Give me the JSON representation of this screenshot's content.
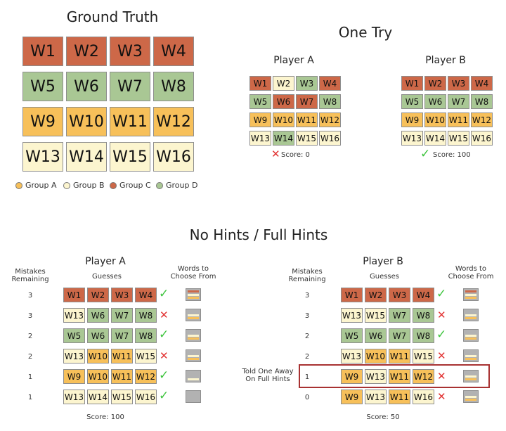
{
  "colors": {
    "A": "#f7c05a",
    "B": "#fcf5cf",
    "C": "#cd6848",
    "D": "#a9c794",
    "check": "#3ec43e",
    "cross": "#e23333",
    "highlight": "#a83232"
  },
  "ground_truth": {
    "title": "Ground Truth",
    "rows": [
      [
        {
          "w": "W1",
          "g": "C"
        },
        {
          "w": "W2",
          "g": "C"
        },
        {
          "w": "W3",
          "g": "C"
        },
        {
          "w": "W4",
          "g": "C"
        }
      ],
      [
        {
          "w": "W5",
          "g": "D"
        },
        {
          "w": "W6",
          "g": "D"
        },
        {
          "w": "W7",
          "g": "D"
        },
        {
          "w": "W8",
          "g": "D"
        }
      ],
      [
        {
          "w": "W9",
          "g": "A"
        },
        {
          "w": "W10",
          "g": "A"
        },
        {
          "w": "W11",
          "g": "A"
        },
        {
          "w": "W12",
          "g": "A"
        }
      ],
      [
        {
          "w": "W13",
          "g": "B"
        },
        {
          "w": "W14",
          "g": "B"
        },
        {
          "w": "W15",
          "g": "B"
        },
        {
          "w": "W16",
          "g": "B"
        }
      ]
    ]
  },
  "legend": [
    {
      "label": "Group A",
      "g": "A"
    },
    {
      "label": "Group B",
      "g": "B"
    },
    {
      "label": "Group C",
      "g": "C"
    },
    {
      "label": "Group D",
      "g": "D"
    }
  ],
  "one_try": {
    "title": "One Try",
    "players": [
      {
        "name": "Player A",
        "rows": [
          [
            {
              "w": "W1",
              "g": "C"
            },
            {
              "w": "W2",
              "g": "B"
            },
            {
              "w": "W3",
              "g": "D"
            },
            {
              "w": "W4",
              "g": "C"
            }
          ],
          [
            {
              "w": "W5",
              "g": "D"
            },
            {
              "w": "W6",
              "g": "C"
            },
            {
              "w": "W7",
              "g": "C"
            },
            {
              "w": "W8",
              "g": "D"
            }
          ],
          [
            {
              "w": "W9",
              "g": "A"
            },
            {
              "w": "W10",
              "g": "A"
            },
            {
              "w": "W11",
              "g": "A"
            },
            {
              "w": "W12",
              "g": "A"
            }
          ],
          [
            {
              "w": "W13",
              "g": "B"
            },
            {
              "w": "W14",
              "g": "D"
            },
            {
              "w": "W15",
              "g": "B"
            },
            {
              "w": "W16",
              "g": "B"
            }
          ]
        ],
        "result": "cross",
        "score": "Score: 0"
      },
      {
        "name": "Player B",
        "rows": [
          [
            {
              "w": "W1",
              "g": "C"
            },
            {
              "w": "W2",
              "g": "C"
            },
            {
              "w": "W3",
              "g": "C"
            },
            {
              "w": "W4",
              "g": "C"
            }
          ],
          [
            {
              "w": "W5",
              "g": "D"
            },
            {
              "w": "W6",
              "g": "D"
            },
            {
              "w": "W7",
              "g": "D"
            },
            {
              "w": "W8",
              "g": "D"
            }
          ],
          [
            {
              "w": "W9",
              "g": "A"
            },
            {
              "w": "W10",
              "g": "A"
            },
            {
              "w": "W11",
              "g": "A"
            },
            {
              "w": "W12",
              "g": "A"
            }
          ],
          [
            {
              "w": "W13",
              "g": "B"
            },
            {
              "w": "W14",
              "g": "B"
            },
            {
              "w": "W15",
              "g": "B"
            },
            {
              "w": "W16",
              "g": "B"
            }
          ]
        ],
        "result": "check",
        "score": "Score: 100"
      }
    ]
  },
  "hints": {
    "title": "No Hints / Full Hints",
    "mistakes_header": "Mistakes Remaining",
    "guesses_header": "Guesses",
    "words_header": "Words to Choose From",
    "players": [
      {
        "name": "Player A",
        "score": "Score: 100",
        "rows": [
          {
            "mistakes": "3",
            "words": [
              {
                "w": "W1",
                "g": "C"
              },
              {
                "w": "W2",
                "g": "C"
              },
              {
                "w": "W3",
                "g": "C"
              },
              {
                "w": "W4",
                "g": "C"
              }
            ],
            "result": "check",
            "bars": [
              "C",
              "B",
              "A"
            ]
          },
          {
            "mistakes": "3",
            "words": [
              {
                "w": "W13",
                "g": "B"
              },
              {
                "w": "W6",
                "g": "D"
              },
              {
                "w": "W7",
                "g": "D"
              },
              {
                "w": "W8",
                "g": "D"
              }
            ],
            "result": "cross",
            "bars": [
              "B",
              "A"
            ]
          },
          {
            "mistakes": "2",
            "words": [
              {
                "w": "W5",
                "g": "D"
              },
              {
                "w": "W6",
                "g": "D"
              },
              {
                "w": "W7",
                "g": "D"
              },
              {
                "w": "W8",
                "g": "D"
              }
            ],
            "result": "check",
            "bars": [
              "B",
              "A"
            ]
          },
          {
            "mistakes": "2",
            "words": [
              {
                "w": "W13",
                "g": "B"
              },
              {
                "w": "W10",
                "g": "A"
              },
              {
                "w": "W11",
                "g": "A"
              },
              {
                "w": "W15",
                "g": "B"
              }
            ],
            "result": "cross",
            "bars": [
              "B",
              "A"
            ]
          },
          {
            "mistakes": "1",
            "words": [
              {
                "w": "W9",
                "g": "A"
              },
              {
                "w": "W10",
                "g": "A"
              },
              {
                "w": "W11",
                "g": "A"
              },
              {
                "w": "W12",
                "g": "A"
              }
            ],
            "result": "check",
            "bars": [
              "B"
            ]
          },
          {
            "mistakes": "1",
            "words": [
              {
                "w": "W13",
                "g": "B"
              },
              {
                "w": "W14",
                "g": "B"
              },
              {
                "w": "W15",
                "g": "B"
              },
              {
                "w": "W16",
                "g": "B"
              }
            ],
            "result": "check",
            "bars": []
          }
        ]
      },
      {
        "name": "Player B",
        "score": "Score: 50",
        "note": "Told One Away On Full Hints",
        "rows": [
          {
            "mistakes": "3",
            "words": [
              {
                "w": "W1",
                "g": "C"
              },
              {
                "w": "W2",
                "g": "C"
              },
              {
                "w": "W3",
                "g": "C"
              },
              {
                "w": "W4",
                "g": "C"
              }
            ],
            "result": "check",
            "bars": [
              "C",
              "B",
              "A"
            ]
          },
          {
            "mistakes": "3",
            "words": [
              {
                "w": "W13",
                "g": "B"
              },
              {
                "w": "W15",
                "g": "B"
              },
              {
                "w": "W7",
                "g": "D"
              },
              {
                "w": "W8",
                "g": "D"
              }
            ],
            "result": "cross",
            "bars": [
              "B",
              "A"
            ]
          },
          {
            "mistakes": "2",
            "words": [
              {
                "w": "W5",
                "g": "D"
              },
              {
                "w": "W6",
                "g": "D"
              },
              {
                "w": "W7",
                "g": "D"
              },
              {
                "w": "W8",
                "g": "D"
              }
            ],
            "result": "check",
            "bars": [
              "B",
              "A"
            ]
          },
          {
            "mistakes": "2",
            "words": [
              {
                "w": "W13",
                "g": "B"
              },
              {
                "w": "W10",
                "g": "A"
              },
              {
                "w": "W11",
                "g": "A"
              },
              {
                "w": "W15",
                "g": "B"
              }
            ],
            "result": "cross",
            "bars": [
              "B",
              "A"
            ]
          },
          {
            "mistakes": "1",
            "words": [
              {
                "w": "W9",
                "g": "A"
              },
              {
                "w": "W13",
                "g": "B"
              },
              {
                "w": "W11",
                "g": "A"
              },
              {
                "w": "W12",
                "g": "A"
              }
            ],
            "result": "cross",
            "bars": [
              "B",
              "A"
            ]
          },
          {
            "mistakes": "0",
            "words": [
              {
                "w": "W9",
                "g": "A"
              },
              {
                "w": "W13",
                "g": "B"
              },
              {
                "w": "W11",
                "g": "A"
              },
              {
                "w": "W16",
                "g": "B"
              }
            ],
            "result": "cross",
            "bars": [
              "B",
              "A"
            ]
          }
        ]
      }
    ]
  }
}
